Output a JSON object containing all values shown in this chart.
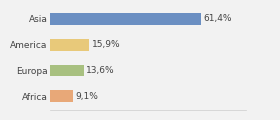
{
  "categories": [
    "Asia",
    "America",
    "Europa",
    "Africa"
  ],
  "values": [
    61.4,
    15.9,
    13.6,
    9.1
  ],
  "labels": [
    "61,4%",
    "15,9%",
    "13,6%",
    "9,1%"
  ],
  "bar_colors": [
    "#6b8fc2",
    "#e8c97a",
    "#a8c080",
    "#e8a878"
  ],
  "background_color": "#f2f2f2",
  "xlim": [
    0,
    80
  ],
  "bar_height": 0.45,
  "label_fontsize": 6.5,
  "category_fontsize": 6.5
}
